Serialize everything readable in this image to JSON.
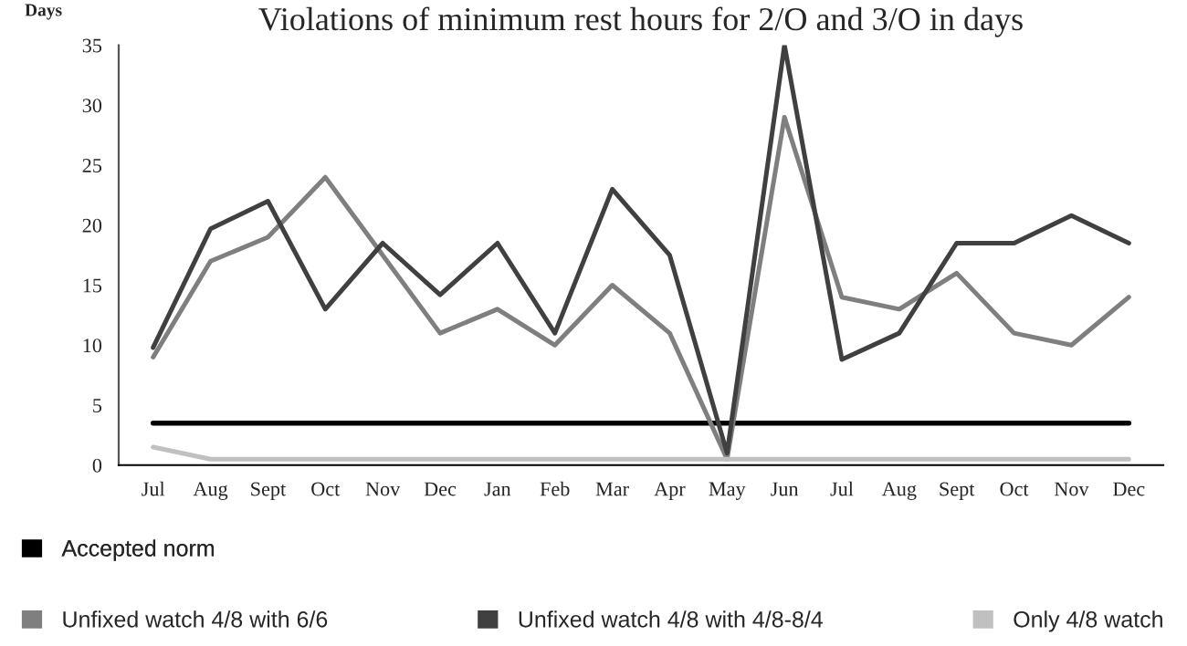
{
  "chart_data": {
    "type": "line",
    "title": "Violations of minimum rest hours for 2/O and 3/O in days",
    "ylabel": "Days",
    "categories": [
      "Jul",
      "Aug",
      "Sept",
      "Oct",
      "Nov",
      "Dec",
      "Jan",
      "Feb",
      "Mar",
      "Apr",
      "May",
      "Jun",
      "Jul",
      "Aug",
      "Sept",
      "Oct",
      "Nov",
      "Dec"
    ],
    "series": [
      {
        "name": "Accepted norm",
        "color": "#000000",
        "values": [
          3.5,
          3.5,
          3.5,
          3.5,
          3.5,
          3.5,
          3.5,
          3.5,
          3.5,
          3.5,
          3.5,
          3.5,
          3.5,
          3.5,
          3.5,
          3.5,
          3.5,
          3.5
        ]
      },
      {
        "name": "Unfixed watch 4/8 with 6/6",
        "color": "#7f7f7f",
        "values": [
          9,
          17,
          19,
          24,
          17.5,
          11,
          13,
          10,
          15,
          11,
          0.5,
          29,
          14,
          13,
          16,
          11,
          10,
          14
        ]
      },
      {
        "name": "Unfixed watch 4/8 with 4/8-8/4",
        "color": "#404040",
        "values": [
          9.8,
          19.7,
          22,
          13,
          18.5,
          14.2,
          18.5,
          11,
          23,
          17.5,
          1,
          35,
          8.8,
          11,
          18.5,
          18.5,
          20.8,
          18.5
        ]
      },
      {
        "name": "Only 4/8 watch",
        "color": "#c0c0c0",
        "values": [
          1.5,
          0.5,
          0.5,
          0.5,
          0.5,
          0.5,
          0.5,
          0.5,
          0.5,
          0.5,
          0.5,
          0.5,
          0.5,
          0.5,
          0.5,
          0.5,
          0.5,
          0.5
        ]
      }
    ],
    "ylim": [
      0,
      35
    ],
    "yticks": [
      0,
      5,
      10,
      15,
      20,
      25,
      30,
      35
    ],
    "grid": false,
    "legend": "bottom",
    "marker": "none",
    "line_style": "solid"
  }
}
